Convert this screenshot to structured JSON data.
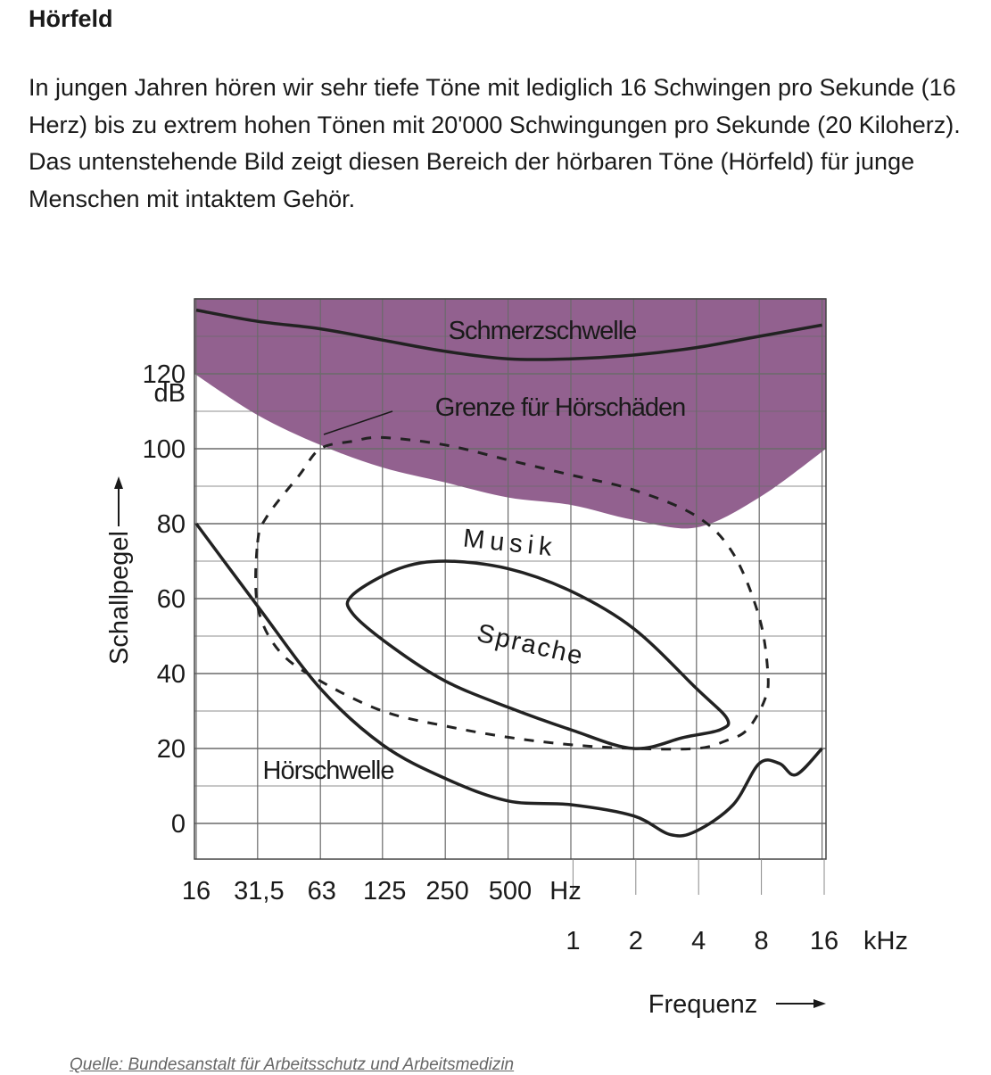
{
  "heading": "Hörfeld",
  "intro": "In jungen Jahren hören wir sehr tiefe Töne mit lediglich 16 Schwingen pro Sekunde (16 Herz) bis zu extrem hohen Tönen mit 20'000 Schwingungen pro Sekunde (20 Kiloherz). Das untenstehende Bild zeigt diesen Bereich der hörbaren Töne (Hörfeld) für junge Menschen mit intaktem Gehör.",
  "source": "Quelle: Bundesanstalt für Arbeitsschutz und Arbeitsmedizin",
  "chart_data": {
    "type": "line",
    "ylabel": "Schallpegel",
    "xlabel": "Frequenz",
    "y_unit": "dB",
    "y_ticks": [
      0,
      20,
      40,
      60,
      80,
      100,
      120
    ],
    "ylim": [
      -10,
      140
    ],
    "x_categories": [
      "16",
      "31,5",
      "63",
      "125",
      "250",
      "500",
      "1000",
      "2000",
      "4000",
      "8000",
      "16000"
    ],
    "x_tick_labels_hz": [
      "16",
      "31,5",
      "63",
      "125",
      "250",
      "500"
    ],
    "x_unit_hz": "Hz",
    "x_tick_labels_khz": [
      "1",
      "2",
      "4",
      "8",
      "16"
    ],
    "x_unit_khz": "kHz",
    "grid": true,
    "colors": {
      "pain_region": "#92618f",
      "line": "#222222",
      "grid": "#6a6a6a"
    },
    "labels": {
      "pain": "Schmerzschwelle",
      "damage": "Grenze für Hörschäden",
      "music": "Musik",
      "speech": "Sprache",
      "hearing": "Hörschwelle"
    },
    "pain_threshold": {
      "name": "Schmerzschwelle",
      "x": [
        16,
        31.5,
        63,
        125,
        250,
        500,
        1000,
        2000,
        4000,
        8000,
        16000
      ],
      "y": [
        137,
        134,
        132,
        129,
        126,
        124,
        124,
        125,
        127,
        130,
        133
      ]
    },
    "damage_limit": {
      "name": "Grenze für Hörschäden",
      "x": [
        16,
        31.5,
        63,
        125,
        250,
        500,
        1000,
        2000,
        4000,
        8000,
        16000
      ],
      "y": [
        120,
        109,
        101,
        95,
        91,
        87,
        85,
        81,
        79,
        87,
        100
      ]
    },
    "hearing_threshold": {
      "name": "Hörschwelle",
      "x": [
        16,
        31.5,
        63,
        125,
        250,
        500,
        1000,
        2000,
        3000,
        4000,
        6000,
        8000,
        10000,
        12000,
        16000
      ],
      "y": [
        80,
        58,
        36,
        21,
        12,
        6,
        5,
        2,
        -3,
        -2,
        5,
        16,
        16,
        13,
        20
      ]
    },
    "music_region": {
      "name": "Musik",
      "x": [
        31.5,
        35,
        50,
        63,
        90,
        125,
        250,
        500,
        1000,
        2000,
        4000,
        6000,
        8000,
        8800,
        8500,
        7000,
        5500,
        4000,
        2000,
        1000,
        500,
        250,
        125,
        63,
        40,
        31.5
      ],
      "y": [
        75,
        82,
        93,
        100,
        102,
        103,
        101,
        97,
        93,
        89,
        82,
        72,
        55,
        40,
        33,
        25,
        22,
        20,
        20,
        21,
        23,
        26,
        30,
        38,
        46,
        58
      ]
    },
    "speech_region": {
      "name": "Sprache",
      "x": [
        90,
        150,
        250,
        500,
        1000,
        2000,
        4000,
        5600,
        5200,
        3500,
        2000,
        1000,
        500,
        250,
        140,
        90
      ],
      "y": [
        61,
        68,
        70,
        68,
        62,
        52,
        36,
        28,
        25,
        23,
        20,
        25,
        31,
        38,
        47,
        56
      ]
    }
  }
}
